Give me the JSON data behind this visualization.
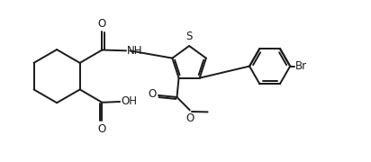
{
  "background_color": "#ffffff",
  "line_color": "#1a1a1a",
  "line_width": 1.4,
  "font_size": 8.5,
  "figsize": [
    4.12,
    1.8
  ],
  "dpi": 100,
  "xlim": [
    0,
    10
  ],
  "ylim": [
    0,
    4.3
  ]
}
